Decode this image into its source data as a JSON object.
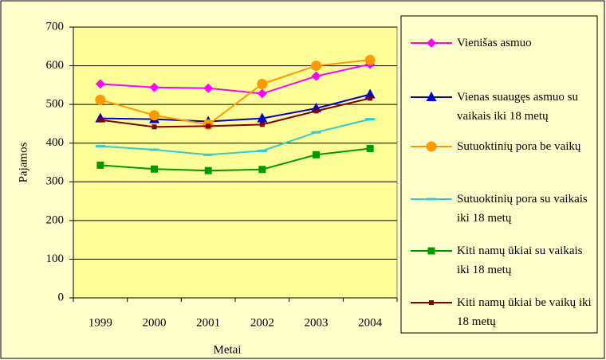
{
  "chart_data": {
    "type": "line",
    "x_label": "Metai",
    "y_label": "Pajamos",
    "categories": [
      "1999",
      "2000",
      "2001",
      "2002",
      "2003",
      "2004"
    ],
    "series": [
      {
        "name": "Vienišas asmuo",
        "color": "#ff00ff",
        "marker": "diamond",
        "values": [
          553,
          544,
          542,
          528,
          573,
          604
        ]
      },
      {
        "name": "Vienas suaugęs asmuo su vaikais iki 18 metų",
        "color": "#0000cc",
        "marker": "triangle",
        "values": [
          464,
          462,
          456,
          464,
          490,
          526
        ]
      },
      {
        "name": "Sutuoktinių pora be vaikų",
        "color": "#ff9900",
        "marker": "circle",
        "values": [
          512,
          472,
          448,
          553,
          600,
          615
        ]
      },
      {
        "name": "Sutuoktinių pora su vaikais iki 18 metų",
        "color": "#33cccc",
        "marker": "dash",
        "values": [
          392,
          383,
          370,
          380,
          428,
          462
        ]
      },
      {
        "name": "Kiti namų ūkiai su vaikais iki 18 metų",
        "color": "#009900",
        "marker": "square",
        "values": [
          343,
          333,
          329,
          332,
          370,
          386
        ]
      },
      {
        "name": "Kiti namų ūkiai be vaikų iki 18 metų",
        "color": "#800000",
        "marker": "smallsquare",
        "values": [
          460,
          442,
          444,
          448,
          483,
          516
        ]
      }
    ],
    "ylim": [
      0,
      700
    ],
    "yticks": [
      0,
      100,
      200,
      300,
      400,
      500,
      600,
      700
    ],
    "grid": true,
    "legend": "right"
  }
}
